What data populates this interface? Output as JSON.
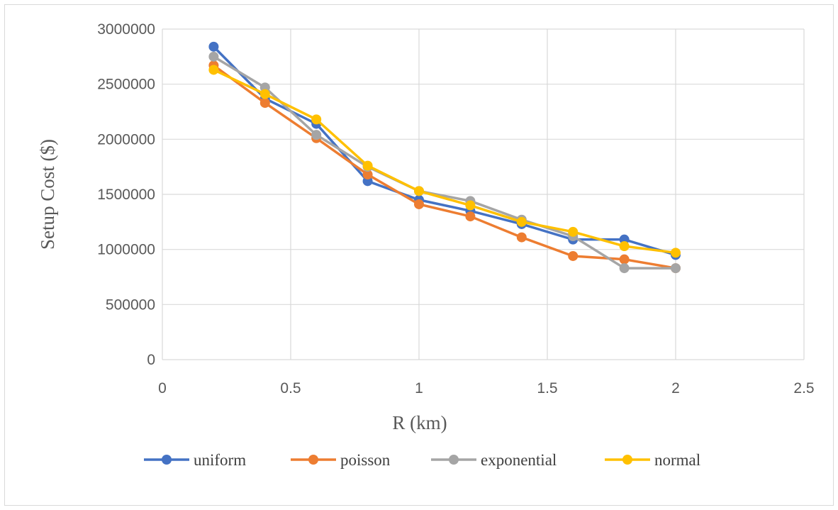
{
  "chart_data": {
    "type": "line",
    "title": "",
    "xlabel": "R (km)",
    "ylabel": "Setup Cost ($)",
    "xlim": [
      0,
      2.5
    ],
    "ylim": [
      0,
      3000000
    ],
    "x_ticks": [
      0,
      0.5,
      1,
      1.5,
      2,
      2.5
    ],
    "x_tick_labels": [
      "0",
      "0.5",
      "1",
      "1.5",
      "2",
      "2.5"
    ],
    "y_ticks": [
      0,
      500000,
      1000000,
      1500000,
      2000000,
      2500000,
      3000000
    ],
    "y_tick_labels": [
      "0",
      "500000",
      "1000000",
      "1500000",
      "2000000",
      "2500000",
      "3000000"
    ],
    "grid": true,
    "legend_position": "bottom",
    "x": [
      0.2,
      0.4,
      0.6,
      0.8,
      1.0,
      1.2,
      1.4,
      1.6,
      1.8,
      2.0
    ],
    "series": [
      {
        "name": "uniform",
        "color": "#4472C4",
        "values": [
          2840000,
          2370000,
          2140000,
          1620000,
          1450000,
          1350000,
          1230000,
          1090000,
          1090000,
          950000
        ]
      },
      {
        "name": "poisson",
        "color": "#ED7D31",
        "values": [
          2670000,
          2330000,
          2010000,
          1680000,
          1410000,
          1300000,
          1110000,
          940000,
          910000,
          830000
        ]
      },
      {
        "name": "exponential",
        "color": "#A5A5A5",
        "values": [
          2750000,
          2470000,
          2040000,
          1750000,
          1530000,
          1440000,
          1270000,
          1120000,
          830000,
          830000
        ]
      },
      {
        "name": "normal",
        "color": "#FFC000",
        "values": [
          2630000,
          2410000,
          2180000,
          1760000,
          1530000,
          1400000,
          1250000,
          1160000,
          1030000,
          970000
        ]
      }
    ]
  }
}
